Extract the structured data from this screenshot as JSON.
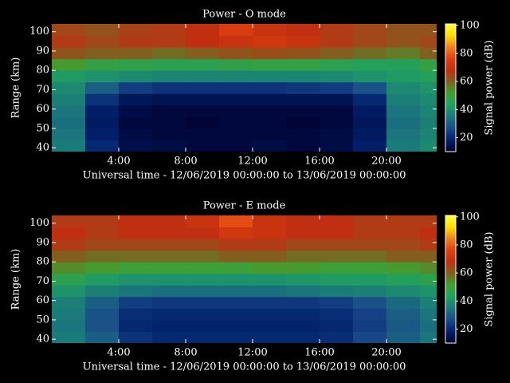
{
  "chart_data": [
    {
      "type": "heatmap",
      "title": "Power - O mode",
      "xlabel": "Universal time - 12/06/2019 00:00:00 to 13/06/2019 00:00:00",
      "ylabel": "Range (km)",
      "colorbar_label": "Signal power (dB)",
      "x": [
        0,
        2,
        4,
        6,
        8,
        10,
        12,
        14,
        16,
        18,
        20,
        22,
        23
      ],
      "y": [
        38,
        44,
        50,
        56,
        62,
        68,
        74,
        80,
        86,
        92,
        98,
        104
      ],
      "z": [
        [
          35,
          20,
          14,
          13,
          12,
          12,
          13,
          12,
          13,
          18,
          35,
          38
        ],
        [
          34,
          18,
          13,
          12,
          12,
          12,
          12,
          12,
          13,
          17,
          34,
          37
        ],
        [
          33,
          17,
          12,
          12,
          11,
          12,
          12,
          11,
          12,
          16,
          33,
          36
        ],
        [
          34,
          18,
          13,
          12,
          12,
          12,
          12,
          12,
          12,
          17,
          34,
          37
        ],
        [
          36,
          22,
          16,
          15,
          15,
          15,
          15,
          15,
          15,
          20,
          36,
          38
        ],
        [
          38,
          30,
          24,
          22,
          22,
          22,
          22,
          23,
          24,
          28,
          38,
          40
        ],
        [
          42,
          40,
          38,
          37,
          37,
          37,
          37,
          37,
          38,
          40,
          42,
          44
        ],
        [
          52,
          48,
          47,
          46,
          46,
          47,
          48,
          48,
          46,
          44,
          44,
          48
        ],
        [
          62,
          60,
          60,
          58,
          60,
          62,
          63,
          62,
          60,
          58,
          56,
          60
        ],
        [
          66,
          64,
          66,
          66,
          68,
          70,
          72,
          70,
          66,
          64,
          62,
          64
        ],
        [
          64,
          62,
          65,
          66,
          68,
          74,
          70,
          68,
          66,
          64,
          62,
          62
        ]
      ],
      "xlim": [
        0,
        23
      ],
      "ylim": [
        38,
        104
      ],
      "xticks": [
        {
          "value": 4,
          "label": "4:00"
        },
        {
          "value": 8,
          "label": "8:00"
        },
        {
          "value": 12,
          "label": "12:00"
        },
        {
          "value": 16,
          "label": "16:00"
        },
        {
          "value": 20,
          "label": "20:00"
        }
      ],
      "yticks": [
        40,
        50,
        60,
        70,
        80,
        90,
        100
      ],
      "clim": [
        10,
        101
      ],
      "cticks": [
        20,
        40,
        60,
        80,
        100
      ],
      "colormap": [
        "#000030",
        "#00206a",
        "#1a4a8a",
        "#1a7a7a",
        "#20a060",
        "#40a030",
        "#806020",
        "#c03010",
        "#e04010",
        "#f08020",
        "#ffe000",
        "#ffff40"
      ]
    },
    {
      "type": "heatmap",
      "title": "Power - E mode",
      "xlabel": "Universal time - 12/06/2019 00:00:00 to 13/06/2019 00:00:00",
      "ylabel": "Range (km)",
      "colorbar_label": "Signal power (dB)",
      "x": [
        0,
        2,
        4,
        6,
        8,
        10,
        12,
        14,
        16,
        18,
        20,
        22,
        23
      ],
      "y": [
        38,
        44,
        50,
        56,
        62,
        68,
        74,
        80,
        86,
        92,
        98,
        104
      ],
      "z": [
        [
          35,
          30,
          22,
          20,
          20,
          20,
          20,
          20,
          21,
          26,
          30,
          34
        ],
        [
          34,
          28,
          20,
          19,
          19,
          19,
          19,
          19,
          20,
          24,
          29,
          33
        ],
        [
          35,
          28,
          21,
          20,
          20,
          20,
          20,
          20,
          21,
          25,
          30,
          34
        ],
        [
          36,
          30,
          24,
          23,
          23,
          23,
          23,
          23,
          24,
          28,
          32,
          36
        ],
        [
          40,
          36,
          34,
          33,
          33,
          33,
          33,
          34,
          35,
          36,
          38,
          40
        ],
        [
          46,
          42,
          40,
          40,
          40,
          40,
          40,
          41,
          42,
          42,
          44,
          46
        ],
        [
          54,
          52,
          50,
          50,
          50,
          50,
          52,
          52,
          50,
          50,
          52,
          54
        ],
        [
          60,
          58,
          58,
          58,
          58,
          60,
          60,
          58,
          58,
          58,
          60,
          60
        ],
        [
          66,
          64,
          64,
          64,
          64,
          66,
          66,
          64,
          64,
          64,
          64,
          66
        ],
        [
          68,
          66,
          68,
          68,
          68,
          72,
          70,
          68,
          68,
          66,
          66,
          68
        ],
        [
          66,
          66,
          68,
          68,
          70,
          78,
          70,
          68,
          68,
          66,
          66,
          66
        ]
      ],
      "xlim": [
        0,
        23
      ],
      "ylim": [
        38,
        104
      ],
      "xticks": [
        {
          "value": 4,
          "label": "4:00"
        },
        {
          "value": 8,
          "label": "8:00"
        },
        {
          "value": 12,
          "label": "12:00"
        },
        {
          "value": 16,
          "label": "16:00"
        },
        {
          "value": 20,
          "label": "20:00"
        }
      ],
      "yticks": [
        40,
        50,
        60,
        70,
        80,
        90,
        100
      ],
      "clim": [
        10,
        101
      ],
      "cticks": [
        20,
        40,
        60,
        80,
        100
      ],
      "colormap": [
        "#000030",
        "#00206a",
        "#1a4a8a",
        "#1a7a7a",
        "#20a060",
        "#40a030",
        "#806020",
        "#c03010",
        "#e04010",
        "#f08020",
        "#ffe000",
        "#ffff40"
      ]
    }
  ]
}
